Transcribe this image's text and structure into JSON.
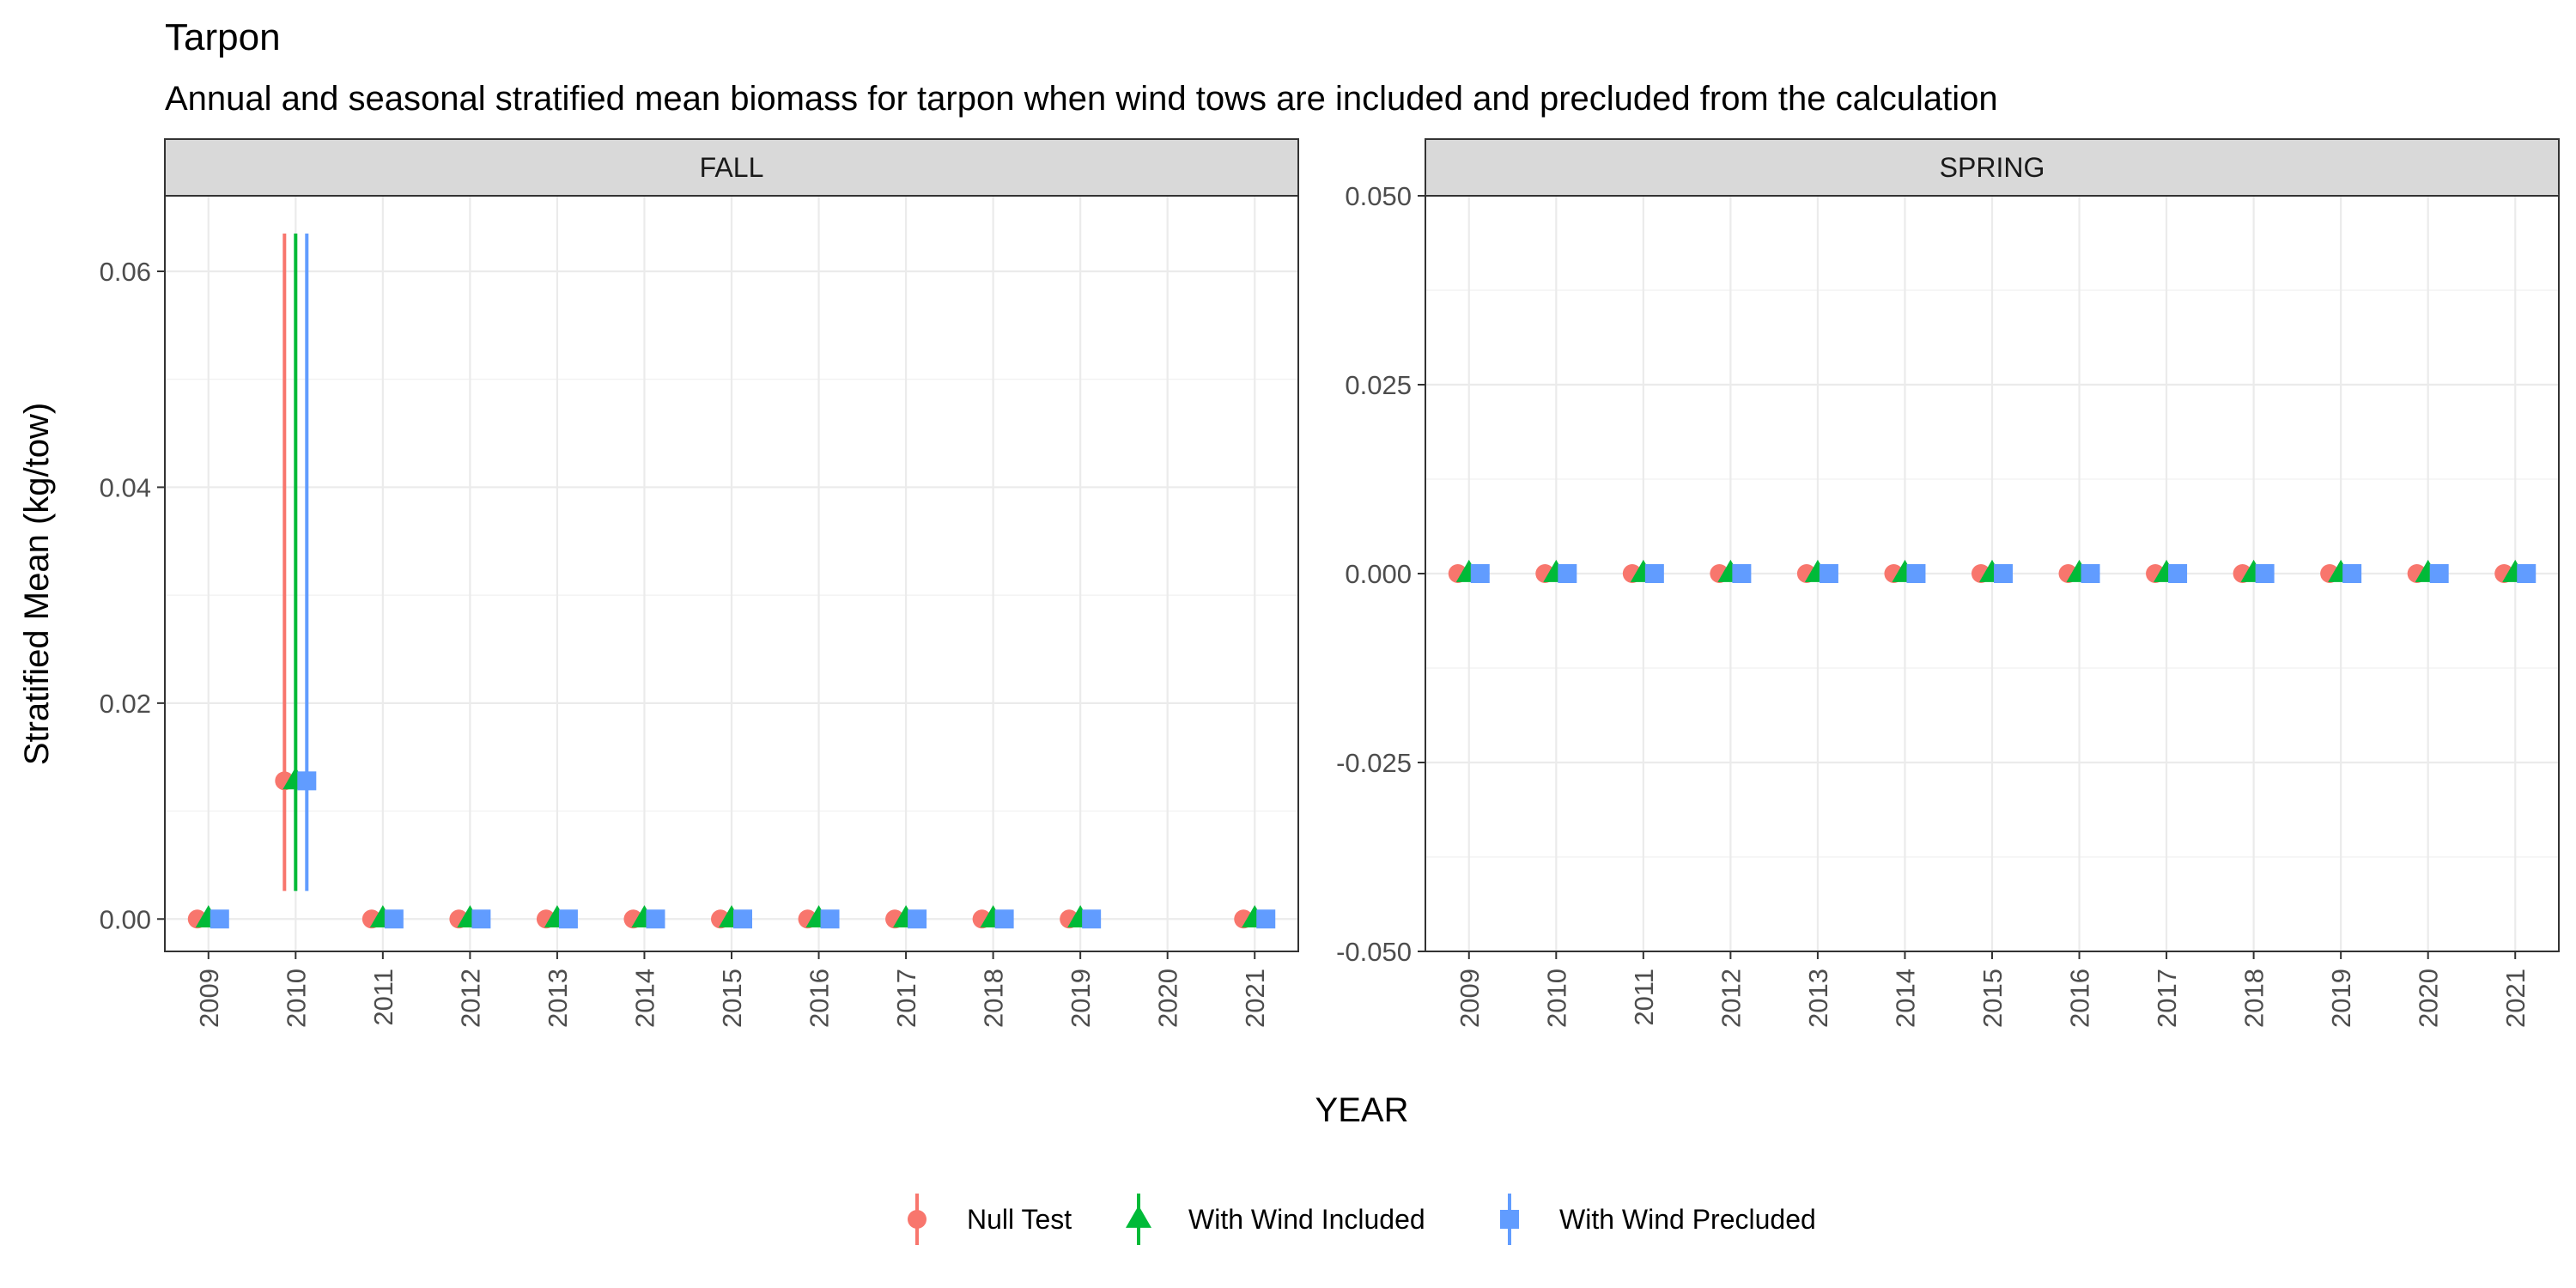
{
  "chart_data": {
    "type": "scatter",
    "title": "Tarpon",
    "subtitle": "Annual and seasonal stratified mean biomass for tarpon when wind tows are included and precluded from the calculation",
    "xlabel": "YEAR",
    "ylabel": "Stratified Mean (kg/tow)",
    "grid": true,
    "legend_position": "bottom",
    "categories": [
      "2009",
      "2010",
      "2011",
      "2012",
      "2013",
      "2014",
      "2015",
      "2016",
      "2017",
      "2018",
      "2019",
      "2020",
      "2021"
    ],
    "series_styles": [
      {
        "name": "Null Test",
        "color": "#F8766D",
        "shape": "circle"
      },
      {
        "name": "With Wind Included",
        "color": "#00BA38",
        "shape": "triangle"
      },
      {
        "name": "With Wind Precluded",
        "color": "#619CFF",
        "shape": "square"
      }
    ],
    "panels": [
      {
        "name": "FALL",
        "ylim": [
          -0.003,
          0.067
        ],
        "yticks": [
          0,
          0.02,
          0.04,
          0.06
        ],
        "ytick_labels": [
          "0.00",
          "0.02",
          "0.04",
          "0.06"
        ],
        "series": [
          {
            "name": "Null Test",
            "years": [
              "2009",
              "2010",
              "2011",
              "2012",
              "2013",
              "2014",
              "2015",
              "2016",
              "2017",
              "2018",
              "2019",
              "2021"
            ],
            "values": [
              0,
              0.0128,
              0,
              0,
              0,
              0,
              0,
              0,
              0,
              0,
              0,
              0
            ],
            "lower": [
              0,
              0.0026,
              0,
              0,
              0,
              0,
              0,
              0,
              0,
              0,
              0,
              0
            ],
            "upper": [
              0,
              0.0635,
              0,
              0,
              0,
              0,
              0,
              0,
              0,
              0,
              0,
              0
            ]
          },
          {
            "name": "With Wind Included",
            "years": [
              "2009",
              "2010",
              "2011",
              "2012",
              "2013",
              "2014",
              "2015",
              "2016",
              "2017",
              "2018",
              "2019",
              "2021"
            ],
            "values": [
              0,
              0.0128,
              0,
              0,
              0,
              0,
              0,
              0,
              0,
              0,
              0,
              0
            ],
            "lower": [
              0,
              0.0026,
              0,
              0,
              0,
              0,
              0,
              0,
              0,
              0,
              0,
              0
            ],
            "upper": [
              0,
              0.0635,
              0,
              0,
              0,
              0,
              0,
              0,
              0,
              0,
              0,
              0
            ]
          },
          {
            "name": "With Wind Precluded",
            "years": [
              "2009",
              "2010",
              "2011",
              "2012",
              "2013",
              "2014",
              "2015",
              "2016",
              "2017",
              "2018",
              "2019",
              "2021"
            ],
            "values": [
              0,
              0.0128,
              0,
              0,
              0,
              0,
              0,
              0,
              0,
              0,
              0,
              0
            ],
            "lower": [
              0,
              0.0026,
              0,
              0,
              0,
              0,
              0,
              0,
              0,
              0,
              0,
              0
            ],
            "upper": [
              0,
              0.0635,
              0,
              0,
              0,
              0,
              0,
              0,
              0,
              0,
              0,
              0
            ]
          }
        ]
      },
      {
        "name": "SPRING",
        "ylim": [
          -0.05,
          0.05
        ],
        "yticks": [
          -0.05,
          -0.025,
          0,
          0.025,
          0.05
        ],
        "ytick_labels": [
          "-0.050",
          "-0.025",
          "0.000",
          "0.025",
          "0.050"
        ],
        "series": [
          {
            "name": "Null Test",
            "years": [
              "2009",
              "2010",
              "2011",
              "2012",
              "2013",
              "2014",
              "2015",
              "2016",
              "2017",
              "2018",
              "2019",
              "2020",
              "2021"
            ],
            "values": [
              0,
              0,
              0,
              0,
              0,
              0,
              0,
              0,
              0,
              0,
              0,
              0,
              0
            ]
          },
          {
            "name": "With Wind Included",
            "years": [
              "2009",
              "2010",
              "2011",
              "2012",
              "2013",
              "2014",
              "2015",
              "2016",
              "2017",
              "2018",
              "2019",
              "2020",
              "2021"
            ],
            "values": [
              0,
              0,
              0,
              0,
              0,
              0,
              0,
              0,
              0,
              0,
              0,
              0,
              0
            ]
          },
          {
            "name": "With Wind Precluded",
            "years": [
              "2009",
              "2010",
              "2011",
              "2012",
              "2013",
              "2014",
              "2015",
              "2016",
              "2017",
              "2018",
              "2019",
              "2020",
              "2021"
            ],
            "values": [
              0,
              0,
              0,
              0,
              0,
              0,
              0,
              0,
              0,
              0,
              0,
              0,
              0
            ]
          }
        ]
      }
    ]
  }
}
